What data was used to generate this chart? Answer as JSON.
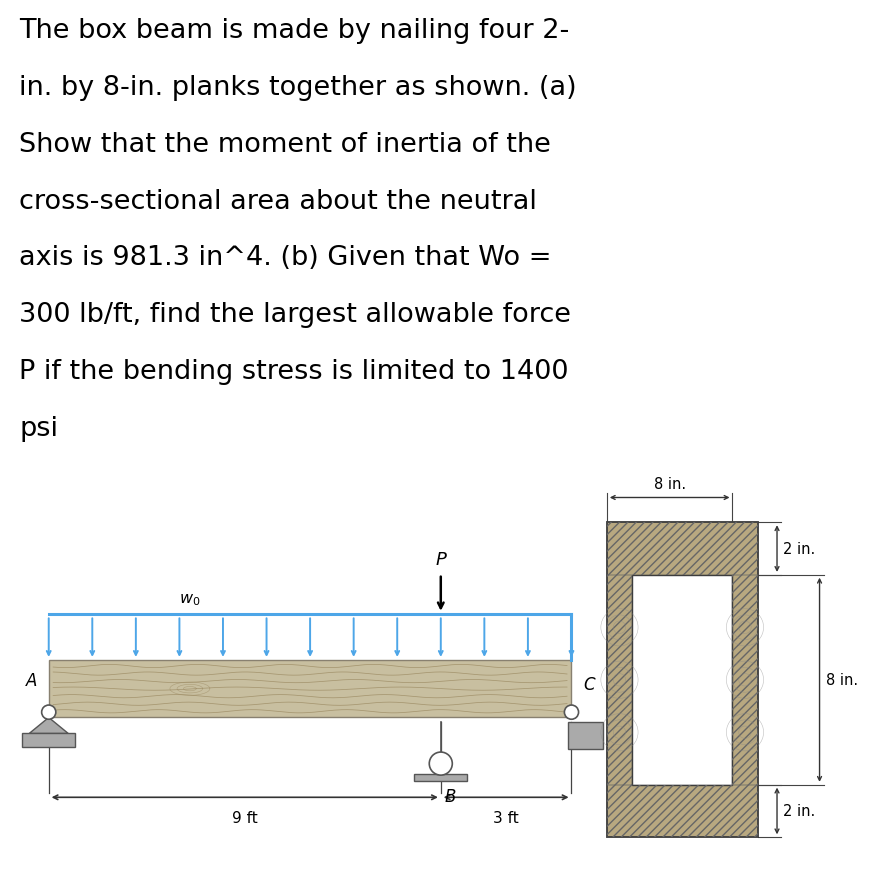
{
  "bg_color": "#ffffff",
  "text_color": "#000000",
  "arrow_color": "#4da6e8",
  "lines": [
    "The box beam is made by nailing four 2-",
    "in. by 8-in. planks together as shown. (a)",
    "Show that the moment of inertia of the",
    "cross-sectional area about the neutral",
    "axis is 981.3 in^4. (b) Given that Wo =",
    "300 lb/ft, find the largest allowable force",
    "P if the bending stress is limited to 1400",
    "psi"
  ],
  "beam_fill": "#c8bfa0",
  "beam_edge": "#888070",
  "grain_color": "#9a8860",
  "support_fill": "#aaaaaa",
  "support_edge": "#555555",
  "cs_fill": "#b8a880",
  "cs_hatch_color": "#666666",
  "label_A": "A",
  "label_B": "B",
  "label_C": "C",
  "label_P": "P",
  "label_wo": "w₀",
  "label_9ft": "9 ft",
  "label_3ft": "3 ft",
  "label_8in": "8 in.",
  "label_2in": "2 in."
}
